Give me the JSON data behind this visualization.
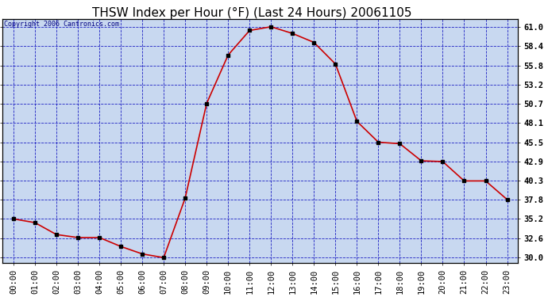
{
  "title": "THSW Index per Hour (°F) (Last 24 Hours) 20061105",
  "copyright": "Copyright 2006 Cantronics.com",
  "hours": [
    0,
    1,
    2,
    3,
    4,
    5,
    6,
    7,
    8,
    9,
    10,
    11,
    12,
    13,
    14,
    15,
    16,
    17,
    18,
    19,
    20,
    21,
    22,
    23
  ],
  "values": [
    35.2,
    34.7,
    33.1,
    32.7,
    32.7,
    31.5,
    30.5,
    30.0,
    38.0,
    50.7,
    57.2,
    60.5,
    61.0,
    60.1,
    58.9,
    56.0,
    48.3,
    45.5,
    45.3,
    43.0,
    42.9,
    40.3,
    40.3,
    37.8
  ],
  "x_labels": [
    "00:00",
    "01:00",
    "02:00",
    "03:00",
    "04:00",
    "05:00",
    "06:00",
    "07:00",
    "08:00",
    "09:00",
    "10:00",
    "11:00",
    "12:00",
    "13:00",
    "14:00",
    "15:00",
    "16:00",
    "17:00",
    "18:00",
    "19:00",
    "20:00",
    "21:00",
    "22:00",
    "23:00"
  ],
  "y_ticks": [
    30.0,
    32.6,
    35.2,
    37.8,
    40.3,
    42.9,
    45.5,
    48.1,
    50.7,
    53.2,
    55.8,
    58.4,
    61.0
  ],
  "ylim_min": 29.3,
  "ylim_max": 62.0,
  "line_color": "#cc0000",
  "marker_color": "#000000",
  "bg_color": "#c8d8f0",
  "grid_color": "#0000bb",
  "title_fontsize": 11,
  "tick_fontsize": 7.5,
  "copyright_fontsize": 6,
  "outer_bg": "#ffffff"
}
